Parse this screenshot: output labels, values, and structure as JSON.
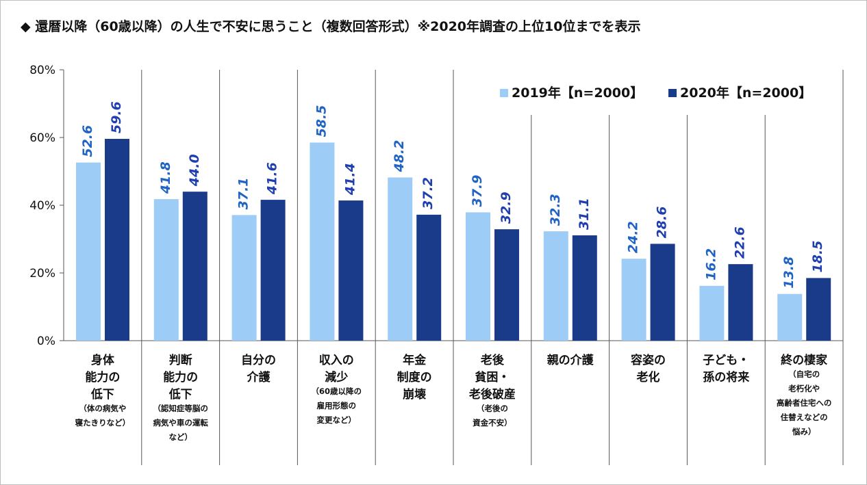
{
  "title": "◆ 還暦以降（60歳以降）の人生で不安に思うこと（複数回答形式）※2020年調査の上位10位までを表示",
  "colors": {
    "series2019": "#9dcdf7",
    "series2020": "#1a3a8a",
    "label2019": "#1f63c4",
    "label2020": "#1f3fb0",
    "grid": "#555555"
  },
  "chart_data": {
    "type": "bar",
    "ylim": [
      0,
      80
    ],
    "yticks": [
      "0%",
      "20%",
      "40%",
      "60%",
      "80%"
    ],
    "legend_position": "top-right",
    "categories": [
      {
        "main": [
          "身体",
          "能力の",
          "低下"
        ],
        "sub": [
          "（体の病気や",
          "寝たきりなど）"
        ]
      },
      {
        "main": [
          "判断",
          "能力の",
          "低下"
        ],
        "sub": [
          "（認知症等脳の",
          "病気や車の運転",
          "など）"
        ]
      },
      {
        "main": [
          "自分の",
          "介護"
        ],
        "sub": []
      },
      {
        "main": [
          "収入の",
          "減少"
        ],
        "sub": [
          "（60歳以降の",
          "雇用形態の",
          "変更など）"
        ]
      },
      {
        "main": [
          "年金",
          "制度の",
          "崩壊"
        ],
        "sub": []
      },
      {
        "main": [
          "老後",
          "貧困・",
          "老後破産"
        ],
        "sub": [
          "（老後の",
          "資金不安）"
        ]
      },
      {
        "main": [
          "親の介護"
        ],
        "sub": []
      },
      {
        "main": [
          "容姿の",
          "老化"
        ],
        "sub": []
      },
      {
        "main": [
          "子ども・",
          "孫の将来"
        ],
        "sub": []
      },
      {
        "main": [
          "終の棲家"
        ],
        "sub": [
          "（自宅の",
          "老朽化や",
          "高齢者住宅への",
          "住替えなどの",
          "悩み）"
        ]
      }
    ],
    "series": [
      {
        "name": "2019年【n=2000】",
        "values": [
          52.6,
          41.8,
          37.1,
          58.5,
          48.2,
          37.9,
          32.3,
          24.2,
          16.2,
          13.8
        ],
        "labels": [
          "52.6",
          "41.8",
          "37.1",
          "58.5",
          "48.2",
          "37.9",
          "32.3",
          "24.2",
          "16.2",
          "13.8"
        ]
      },
      {
        "name": "2020年【n=2000】",
        "values": [
          59.6,
          44.0,
          41.6,
          41.4,
          37.2,
          32.9,
          31.1,
          28.6,
          22.6,
          18.5
        ],
        "labels": [
          "59.6",
          "44.0",
          "41.6",
          "41.4",
          "37.2",
          "32.9",
          "31.1",
          "28.6",
          "22.6",
          "18.5"
        ]
      }
    ]
  }
}
